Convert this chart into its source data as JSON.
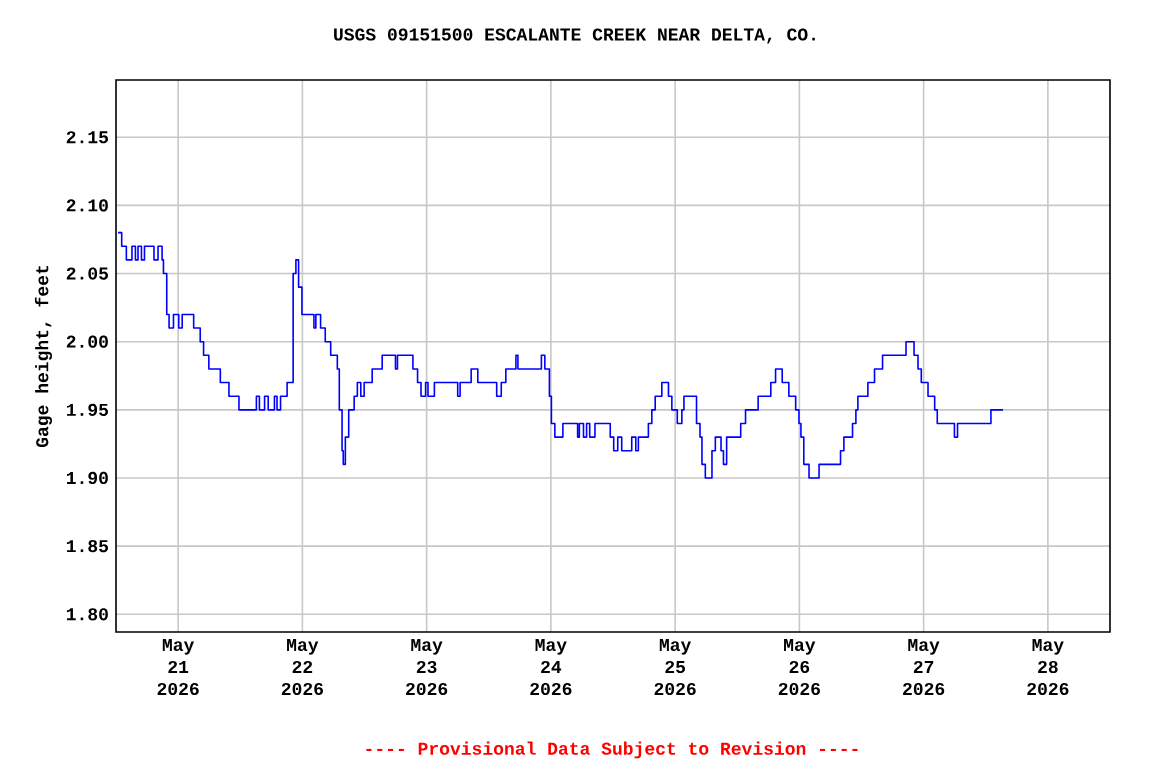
{
  "chart_data": {
    "type": "step",
    "title": "USGS 09151500 ESCALANTE CREEK NEAR DELTA, CO.",
    "ylabel": "Gage height, feet",
    "annotations": [
      "---- Provisional Data Subject to Revision ----"
    ],
    "xlim": [
      "2026-05-20T12:00",
      "2026-05-28T12:00"
    ],
    "xticks": [
      {
        "value": "2026-05-21",
        "label": "May 21 2026"
      },
      {
        "value": "2026-05-22",
        "label": "May 22 2026"
      },
      {
        "value": "2026-05-23",
        "label": "May 23 2026"
      },
      {
        "value": "2026-05-24",
        "label": "May 24 2026"
      },
      {
        "value": "2026-05-25",
        "label": "May 25 2026"
      },
      {
        "value": "2026-05-26",
        "label": "May 26 2026"
      },
      {
        "value": "2026-05-27",
        "label": "May 27 2026"
      },
      {
        "value": "2026-05-28",
        "label": "May 28 2026"
      }
    ],
    "ylim": [
      1.787,
      2.192
    ],
    "yticks": [
      {
        "value": 1.8,
        "label": "1.80"
      },
      {
        "value": 1.85,
        "label": "1.85"
      },
      {
        "value": 1.9,
        "label": "1.90"
      },
      {
        "value": 1.95,
        "label": "1.95"
      },
      {
        "value": 2.0,
        "label": "2.00"
      },
      {
        "value": 2.05,
        "label": "2.05"
      },
      {
        "value": 2.1,
        "label": "2.10"
      },
      {
        "value": 2.15,
        "label": "2.15"
      }
    ],
    "grid": true,
    "marker": "none",
    "line_style": "solid",
    "series": [
      {
        "color": "#0000ff",
        "x": [
          "2026-05-20T12:24",
          "2026-05-20T13:06",
          "2026-05-20T14:00",
          "2026-05-20T15:05",
          "2026-05-20T15:45",
          "2026-05-20T16:15",
          "2026-05-20T16:55",
          "2026-05-20T17:30",
          "2026-05-20T19:20",
          "2026-05-20T20:07",
          "2026-05-20T20:54",
          "2026-05-20T21:10",
          "2026-05-20T21:48",
          "2026-05-20T22:15",
          "2026-05-20T23:06",
          "2026-05-21T00:07",
          "2026-05-21T00:47",
          "2026-05-21T03:00",
          "2026-05-21T04:16",
          "2026-05-21T04:55",
          "2026-05-21T05:56",
          "2026-05-21T08:09",
          "2026-05-21T09:49",
          "2026-05-21T11:45",
          "2026-05-21T15:07",
          "2026-05-21T15:42",
          "2026-05-21T16:42",
          "2026-05-21T17:24",
          "2026-05-21T18:36",
          "2026-05-21T19:06",
          "2026-05-21T19:47",
          "2026-05-21T21:03",
          "2026-05-21T22:13",
          "2026-05-21T22:45",
          "2026-05-21T23:16",
          "2026-05-21T23:55",
          "2026-05-22T02:14",
          "2026-05-22T02:36",
          "2026-05-22T03:31",
          "2026-05-22T04:25",
          "2026-05-22T05:28",
          "2026-05-22T06:45",
          "2026-05-22T07:08",
          "2026-05-22T07:40",
          "2026-05-22T07:54",
          "2026-05-22T08:18",
          "2026-05-22T08:57",
          "2026-05-22T10:00",
          "2026-05-22T10:37",
          "2026-05-22T11:17",
          "2026-05-22T11:56",
          "2026-05-22T13:29",
          "2026-05-22T15:25",
          "2026-05-22T17:59",
          "2026-05-22T18:22",
          "2026-05-22T21:21",
          "2026-05-22T22:15",
          "2026-05-22T22:55",
          "2026-05-22T23:48",
          "2026-05-23T00:16",
          "2026-05-23T01:30",
          "2026-05-23T06:00",
          "2026-05-23T06:28",
          "2026-05-23T08:36",
          "2026-05-23T09:53",
          "2026-05-23T13:32",
          "2026-05-23T14:25",
          "2026-05-23T15:18",
          "2026-05-23T17:15",
          "2026-05-23T17:38",
          "2026-05-23T22:10",
          "2026-05-23T22:50",
          "2026-05-23T23:43",
          "2026-05-24T00:06",
          "2026-05-24T00:46",
          "2026-05-24T02:19",
          "2026-05-24T05:10",
          "2026-05-24T05:30",
          "2026-05-24T06:18",
          "2026-05-24T06:54",
          "2026-05-24T07:30",
          "2026-05-24T08:31",
          "2026-05-24T11:28",
          "2026-05-24T12:08",
          "2026-05-24T12:55",
          "2026-05-24T13:41",
          "2026-05-24T15:37",
          "2026-05-24T16:24",
          "2026-05-24T16:54",
          "2026-05-24T18:50",
          "2026-05-24T19:30",
          "2026-05-24T20:09",
          "2026-05-24T21:26",
          "2026-05-24T22:43",
          "2026-05-24T23:22",
          "2026-05-25T00:25",
          "2026-05-25T01:18",
          "2026-05-25T01:42",
          "2026-05-25T04:08",
          "2026-05-25T04:48",
          "2026-05-25T05:11",
          "2026-05-25T05:50",
          "2026-05-25T07:07",
          "2026-05-25T07:46",
          "2026-05-25T08:52",
          "2026-05-25T09:20",
          "2026-05-25T09:57",
          "2026-05-25T12:40",
          "2026-05-25T13:36",
          "2026-05-25T16:02",
          "2026-05-25T18:29",
          "2026-05-25T19:24",
          "2026-05-25T20:41",
          "2026-05-25T21:58",
          "2026-05-25T23:17",
          "2026-05-25T23:55",
          "2026-05-26T00:18",
          "2026-05-26T00:51",
          "2026-05-26T01:52",
          "2026-05-26T03:48",
          "2026-05-26T07:57",
          "2026-05-26T08:36",
          "2026-05-26T10:16",
          "2026-05-26T10:55",
          "2026-05-26T11:18",
          "2026-05-26T13:14",
          "2026-05-26T14:31",
          "2026-05-26T16:04",
          "2026-05-26T20:36",
          "2026-05-26T22:09",
          "2026-05-26T22:55",
          "2026-05-26T23:33",
          "2026-05-27T00:51",
          "2026-05-27T02:08",
          "2026-05-27T02:38",
          "2026-05-27T05:57",
          "2026-05-27T06:33",
          "2026-05-27T13:00",
          "2026-05-27T15:20"
        ],
        "values": [
          2.08,
          2.07,
          2.06,
          2.07,
          2.06,
          2.07,
          2.06,
          2.07,
          2.06,
          2.07,
          2.06,
          2.05,
          2.02,
          2.01,
          2.02,
          2.01,
          2.02,
          2.01,
          2.0,
          1.99,
          1.98,
          1.97,
          1.96,
          1.95,
          1.96,
          1.95,
          1.96,
          1.95,
          1.96,
          1.95,
          1.96,
          1.97,
          2.05,
          2.06,
          2.04,
          2.02,
          2.01,
          2.02,
          2.01,
          2.0,
          1.99,
          1.98,
          1.95,
          1.92,
          1.91,
          1.93,
          1.95,
          1.96,
          1.97,
          1.96,
          1.97,
          1.98,
          1.99,
          1.98,
          1.99,
          1.98,
          1.97,
          1.96,
          1.97,
          1.96,
          1.97,
          1.96,
          1.97,
          1.98,
          1.97,
          1.96,
          1.97,
          1.98,
          1.99,
          1.98,
          1.99,
          1.98,
          1.96,
          1.94,
          1.93,
          1.94,
          1.93,
          1.94,
          1.93,
          1.94,
          1.93,
          1.94,
          1.93,
          1.92,
          1.93,
          1.92,
          1.93,
          1.92,
          1.93,
          1.94,
          1.95,
          1.96,
          1.97,
          1.96,
          1.95,
          1.94,
          1.95,
          1.96,
          1.94,
          1.93,
          1.91,
          1.9,
          1.92,
          1.93,
          1.92,
          1.91,
          1.93,
          1.94,
          1.95,
          1.96,
          1.97,
          1.98,
          1.97,
          1.96,
          1.95,
          1.94,
          1.93,
          1.91,
          1.9,
          1.91,
          1.92,
          1.93,
          1.94,
          1.95,
          1.96,
          1.97,
          1.98,
          1.99,
          2.0,
          1.99,
          1.98,
          1.97,
          1.96,
          1.95,
          1.94,
          1.93,
          1.94,
          1.95,
          1.95
        ]
      }
    ]
  }
}
